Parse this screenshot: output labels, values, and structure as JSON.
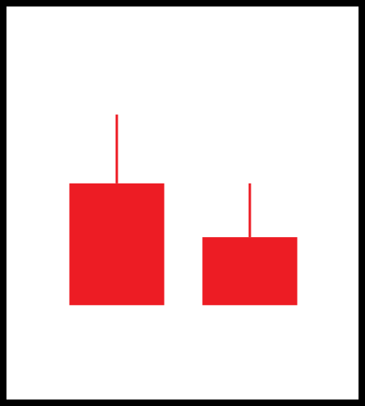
{
  "chart_data": {
    "type": "candlestick",
    "title": "",
    "xlabel": "",
    "ylabel": "",
    "grid": false,
    "legend": "none",
    "ylim": [
      0,
      1000
    ],
    "candles": [
      {
        "open": 550,
        "close": 240,
        "high": 725,
        "low": 240
      },
      {
        "open": 413,
        "close": 240,
        "high": 550,
        "low": 240
      }
    ],
    "colors": {
      "candle": "#ed1c24",
      "background": "#ffffff",
      "frame": "#000000"
    }
  }
}
